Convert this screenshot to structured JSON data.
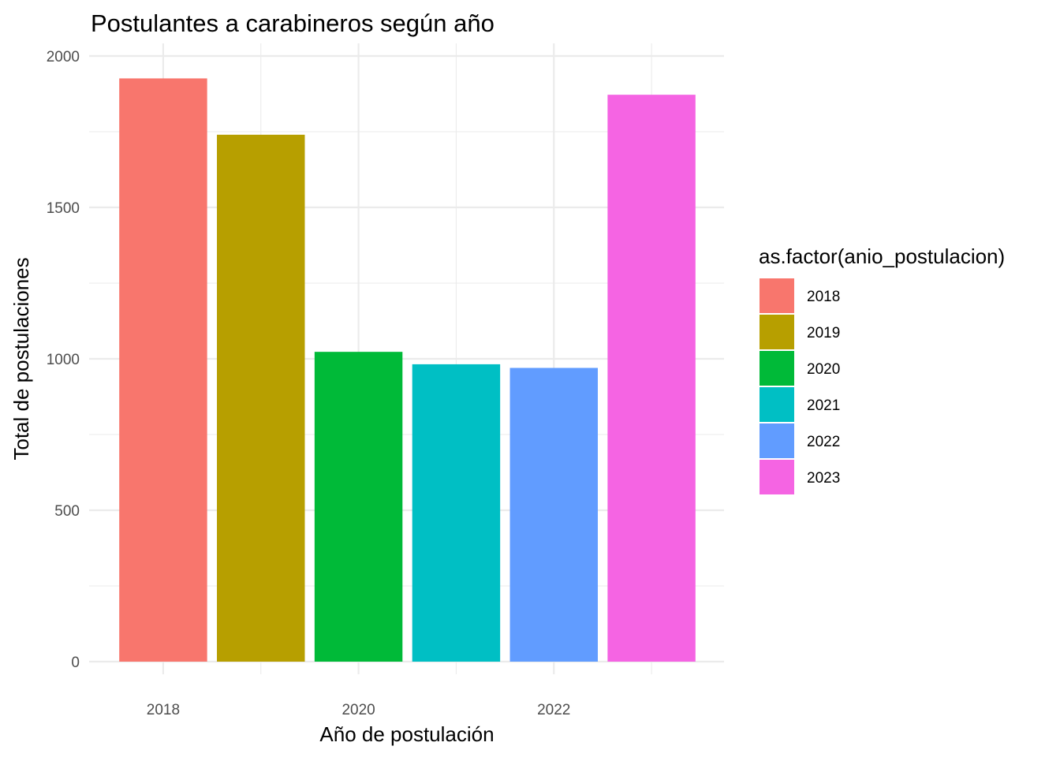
{
  "chart_data": {
    "type": "bar",
    "title": "Postulantes a carabineros según año",
    "xlabel": "Año de postulación",
    "ylabel": "Total de postulaciones",
    "x": [
      2018,
      2019,
      2020,
      2021,
      2022,
      2023
    ],
    "values": [
      1926,
      1740,
      1023,
      982,
      970,
      1872
    ],
    "colors": [
      "#F8766D",
      "#B79F00",
      "#00BA38",
      "#00BFC4",
      "#619CFF",
      "#F564E3"
    ],
    "ylim": [
      0,
      2000
    ],
    "yticks": [
      0,
      500,
      1000,
      1500,
      2000
    ],
    "xticks": [
      2018,
      2020,
      2022
    ],
    "xlim": [
      2017.5,
      2023.5
    ],
    "grid": true,
    "legend": {
      "title": "as.factor(anio_postulacion)",
      "placement": "right",
      "labels": [
        "2018",
        "2019",
        "2020",
        "2021",
        "2022",
        "2023"
      ]
    }
  }
}
